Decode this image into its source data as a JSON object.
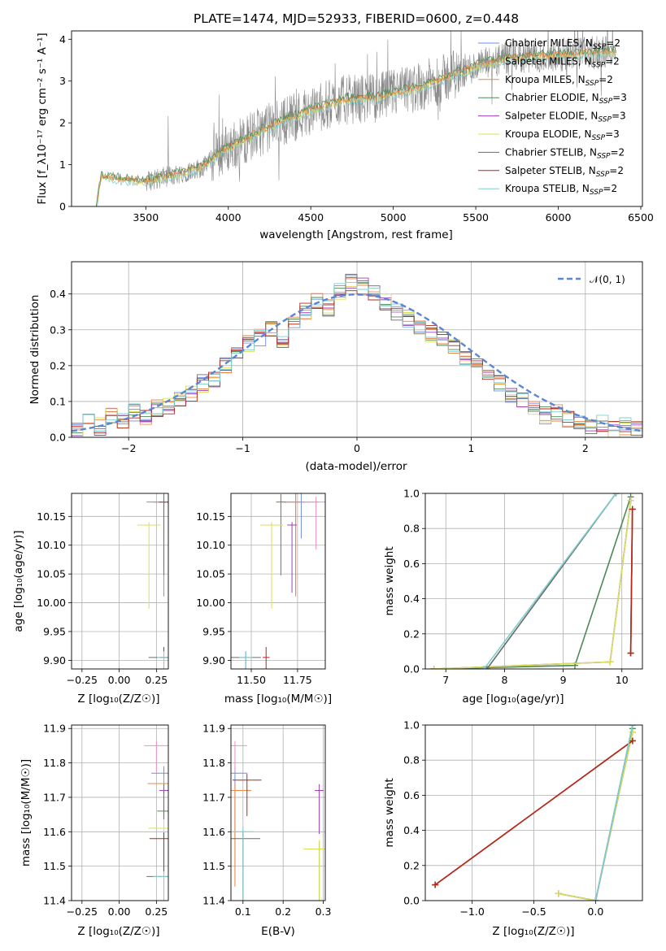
{
  "colors": {
    "Chabrier MILES": "#6f8ee8",
    "Salpeter MILES": "#f07c3c",
    "Kroupa MILES": "#e8894a",
    "Chabrier ELODIE": "#4e8a55",
    "Salpeter ELODIE": "#9f3dc0",
    "Kroupa ELODIE": "#d8e05a",
    "Chabrier STELIB": "#6b6b6b",
    "Salpeter STELIB": "#b3261e",
    "Kroupa STELIB": "#7fcdd0",
    "extra_pink": "#ef8fc7",
    "gaussian": "#5b85d6",
    "grid": "#b0b0b0"
  },
  "chart_data": [
    {
      "id": "spectrum",
      "type": "line",
      "title": "PLATE=1474, MJD=52933, FIBERID=0600, z=0.448",
      "xlabel": "wavelength [Angstrom, rest frame]",
      "ylabel": "Flux [f_λ10⁻¹⁷ erg cm⁻² s⁻¹ A⁻¹]",
      "xlim": [
        3050,
        6510
      ],
      "ylim": [
        0,
        4.2
      ],
      "xticks": [
        3500,
        4000,
        4500,
        5000,
        5500,
        6000,
        6500
      ],
      "yticks": [
        0,
        1,
        2,
        3,
        4
      ],
      "grid": false,
      "legend_position": "right",
      "legend": [
        {
          "model": "Chabrier MILES",
          "n": "2"
        },
        {
          "model": "Salpeter MILES",
          "n": "2"
        },
        {
          "model": "Kroupa MILES",
          "n": "2"
        },
        {
          "model": "Chabrier ELODIE",
          "n": "3"
        },
        {
          "model": "Salpeter ELODIE",
          "n": "3"
        },
        {
          "model": "Kroupa ELODIE",
          "n": "3"
        },
        {
          "model": "Chabrier STELIB",
          "n": "2"
        },
        {
          "model": "Salpeter STELIB",
          "n": "2"
        },
        {
          "model": "Kroupa STELIB",
          "n": "2"
        }
      ],
      "data_range": [
        3200,
        6350
      ],
      "model_trend": [
        [
          3200,
          0.0
        ],
        [
          3230,
          0.72
        ],
        [
          3350,
          0.65
        ],
        [
          3500,
          0.6
        ],
        [
          3700,
          0.78
        ],
        [
          3850,
          0.95
        ],
        [
          3950,
          1.3
        ],
        [
          4100,
          1.6
        ],
        [
          4300,
          2.0
        ],
        [
          4500,
          2.3
        ],
        [
          4700,
          2.55
        ],
        [
          4900,
          2.6
        ],
        [
          5100,
          2.8
        ],
        [
          5300,
          3.05
        ],
        [
          5500,
          3.35
        ],
        [
          5700,
          3.55
        ],
        [
          5900,
          3.6
        ],
        [
          6100,
          3.65
        ],
        [
          6350,
          3.7
        ]
      ]
    },
    {
      "id": "residuals",
      "type": "line",
      "xlabel": "(data-model)/error",
      "ylabel": "Normed distribution",
      "xlim": [
        -2.5,
        2.5
      ],
      "ylim": [
        0,
        0.49
      ],
      "xticks": [
        -2,
        -1,
        0,
        1,
        2
      ],
      "yticks": [
        0.0,
        0.1,
        0.2,
        0.3,
        0.4
      ],
      "grid": true,
      "legend_position": "top-right",
      "legend": [
        {
          "label": "𝒩(0, 1)"
        }
      ],
      "histogram_heights": [
        0.02,
        0.04,
        0.03,
        0.06,
        0.05,
        0.07,
        0.06,
        0.08,
        0.09,
        0.1,
        0.12,
        0.15,
        0.16,
        0.2,
        0.24,
        0.26,
        0.28,
        0.3,
        0.27,
        0.32,
        0.35,
        0.38,
        0.36,
        0.41,
        0.43,
        0.42,
        0.4,
        0.38,
        0.35,
        0.33,
        0.31,
        0.29,
        0.28,
        0.25,
        0.22,
        0.2,
        0.18,
        0.15,
        0.12,
        0.1,
        0.08,
        0.06,
        0.07,
        0.05,
        0.04,
        0.03,
        0.04,
        0.02,
        0.03,
        0.02
      ]
    },
    {
      "id": "age_vs_Z",
      "type": "scatter",
      "xlabel": "Z [log₁₀(Z/Z☉)]",
      "ylabel": "age  [log₁₀(age/yr)]",
      "xlim": [
        -0.32,
        0.33
      ],
      "ylim": [
        9.885,
        10.19
      ],
      "xticks": [
        -0.25,
        0.0,
        0.25
      ],
      "yticks": [
        9.9,
        9.95,
        10.0,
        10.05,
        10.1,
        10.15
      ],
      "grid": true,
      "points": [
        {
          "model": "Chabrier MILES",
          "x": 0.3,
          "y": 10.175
        },
        {
          "model": "Salpeter MILES",
          "x": 0.3,
          "y": 10.175
        },
        {
          "model": "Kroupa MILES",
          "x": 0.3,
          "y": 10.175
        },
        {
          "model": "Chabrier ELODIE",
          "x": 0.3,
          "y": 10.175
        },
        {
          "model": "Salpeter ELODIE",
          "x": 0.3,
          "y": 10.175
        },
        {
          "model": "Kroupa ELODIE",
          "x": 0.2,
          "y": 10.135
        },
        {
          "model": "Chabrier STELIB",
          "x": 0.3,
          "y": 9.905
        },
        {
          "model": "Salpeter STELIB",
          "x": 0.3,
          "y": 9.905
        },
        {
          "model": "Kroupa STELIB",
          "x": 0.3,
          "y": 9.905
        }
      ]
    },
    {
      "id": "age_vs_mass",
      "type": "scatter",
      "xlabel": "mass [log₁₀(M/M☉)]",
      "xlim": [
        11.39,
        11.9
      ],
      "ylim": [
        9.885,
        10.19
      ],
      "xticks": [
        11.5,
        11.75
      ],
      "yticks": [
        9.9,
        9.95,
        10.0,
        10.05,
        10.1,
        10.15
      ],
      "grid": true,
      "points": [
        {
          "model": "Chabrier MILES",
          "x": 11.77,
          "y": 10.175
        },
        {
          "model": "Salpeter MILES",
          "x": 11.74,
          "y": 10.175
        },
        {
          "model": "Kroupa MILES",
          "x": 11.74,
          "y": 10.175
        },
        {
          "model": "Chabrier ELODIE",
          "x": 11.66,
          "y": 10.175
        },
        {
          "model": "Salpeter ELODIE",
          "x": 11.72,
          "y": 10.135
        },
        {
          "model": "Kroupa ELODIE",
          "x": 11.61,
          "y": 10.135
        },
        {
          "model": "Chabrier STELIB",
          "x": 11.47,
          "y": 9.905
        },
        {
          "model": "Salpeter STELIB",
          "x": 11.58,
          "y": 9.905
        },
        {
          "model": "Kroupa STELIB",
          "x": 11.47,
          "y": 9.905
        },
        {
          "model": "extra_pink",
          "x": 11.85,
          "y": 10.175
        }
      ]
    },
    {
      "id": "weight_vs_age",
      "type": "line",
      "xlabel": "age  [log₁₀(age/yr)]",
      "ylabel": "mass weight",
      "xlim": [
        6.65,
        10.35
      ],
      "ylim": [
        0,
        1.0
      ],
      "xticks": [
        7,
        8,
        9,
        10
      ],
      "yticks": [
        0.0,
        0.2,
        0.4,
        0.6,
        0.8,
        1.0
      ],
      "grid": true,
      "series": [
        {
          "model": "Chabrier MILES",
          "x": [
            10.15,
            10.18
          ],
          "y": [
            0.09,
            0.91
          ]
        },
        {
          "model": "Salpeter MILES",
          "x": [
            10.15,
            10.18
          ],
          "y": [
            0.09,
            0.91
          ]
        },
        {
          "model": "Kroupa MILES",
          "x": [
            10.15,
            10.18
          ],
          "y": [
            0.09,
            0.91
          ]
        },
        {
          "model": "Chabrier ELODIE",
          "x": [
            6.8,
            9.2,
            10.15
          ],
          "y": [
            0.0,
            0.02,
            0.98
          ]
        },
        {
          "model": "Salpeter ELODIE",
          "x": [
            6.8,
            9.8,
            10.15
          ],
          "y": [
            0.0,
            0.04,
            0.96
          ]
        },
        {
          "model": "Kroupa ELODIE",
          "x": [
            6.8,
            9.8,
            10.15
          ],
          "y": [
            0.0,
            0.04,
            0.96
          ]
        },
        {
          "model": "Chabrier STELIB",
          "x": [
            7.7,
            9.9
          ],
          "y": [
            0.0,
            1.0
          ]
        },
        {
          "model": "Salpeter STELIB",
          "x": [
            10.15,
            10.18
          ],
          "y": [
            0.09,
            0.91
          ]
        },
        {
          "model": "Kroupa STELIB",
          "x": [
            7.65,
            9.9
          ],
          "y": [
            0.0,
            1.0
          ]
        }
      ]
    },
    {
      "id": "mass_vs_Z",
      "type": "scatter",
      "xlabel": "Z [log₁₀(Z/Z☉)]",
      "ylabel": "mass [log₁₀(M/M☉)]",
      "xlim": [
        -0.32,
        0.33
      ],
      "ylim": [
        11.4,
        11.91
      ],
      "xticks": [
        -0.25,
        0.0,
        0.25
      ],
      "yticks": [
        11.4,
        11.5,
        11.6,
        11.7,
        11.8,
        11.9
      ],
      "grid": true,
      "points": [
        {
          "model": "Chabrier MILES",
          "x": 0.3,
          "y": 11.77
        },
        {
          "model": "Salpeter MILES",
          "x": 0.3,
          "y": 11.74
        },
        {
          "model": "Kroupa MILES",
          "x": 0.3,
          "y": 11.74
        },
        {
          "model": "Chabrier ELODIE",
          "x": 0.3,
          "y": 11.66
        },
        {
          "model": "Salpeter ELODIE",
          "x": 0.3,
          "y": 11.72
        },
        {
          "model": "Kroupa ELODIE",
          "x": 0.3,
          "y": 11.61
        },
        {
          "model": "Chabrier STELIB",
          "x": 0.3,
          "y": 11.47
        },
        {
          "model": "Salpeter STELIB",
          "x": 0.3,
          "y": 11.58
        },
        {
          "model": "Kroupa STELIB",
          "x": 0.3,
          "y": 11.47
        },
        {
          "model": "extra_pink",
          "x": 0.25,
          "y": 11.85
        }
      ]
    },
    {
      "id": "mass_vs_EBV",
      "type": "scatter",
      "xlabel": "E(B-V)",
      "xlim": [
        0.07,
        0.305
      ],
      "ylim": [
        11.4,
        11.91
      ],
      "xticks": [
        0.1,
        0.2,
        0.3
      ],
      "yticks": [
        11.4,
        11.5,
        11.6,
        11.7,
        11.8,
        11.9
      ],
      "grid": true,
      "points": [
        {
          "model": "Chabrier MILES",
          "x": 0.08,
          "y": 11.77
        },
        {
          "model": "Salpeter MILES",
          "x": 0.08,
          "y": 11.72
        },
        {
          "model": "Kroupa MILES",
          "x": 0.08,
          "y": 11.72
        },
        {
          "model": "Chabrier ELODIE",
          "x": 0.29,
          "y": 11.55
        },
        {
          "model": "Salpeter ELODIE",
          "x": 0.29,
          "y": 11.72
        },
        {
          "model": "Kroupa ELODIE",
          "x": 0.29,
          "y": 11.55
        },
        {
          "model": "Chabrier STELIB",
          "x": 0.1,
          "y": 11.58
        },
        {
          "model": "Salpeter STELIB",
          "x": 0.11,
          "y": 11.75
        },
        {
          "model": "Kroupa STELIB",
          "x": 0.1,
          "y": 11.6
        },
        {
          "model": "extra_pink",
          "x": 0.08,
          "y": 11.85
        }
      ]
    },
    {
      "id": "weight_vs_Z",
      "type": "line",
      "xlabel": "Z [log₁₀(Z/Z☉)]",
      "ylabel": "mass weight",
      "xlim": [
        -1.38,
        0.38
      ],
      "ylim": [
        0,
        1.0
      ],
      "xticks": [
        -1.0,
        -0.5,
        0.0
      ],
      "yticks": [
        0.0,
        0.2,
        0.4,
        0.6,
        0.8,
        1.0
      ],
      "grid": true,
      "series": [
        {
          "model": "Chabrier MILES",
          "x": [
            -1.3,
            0.3
          ],
          "y": [
            0.09,
            0.91
          ]
        },
        {
          "model": "Salpeter MILES",
          "x": [
            -1.3,
            0.3
          ],
          "y": [
            0.09,
            0.91
          ]
        },
        {
          "model": "Kroupa MILES",
          "x": [
            -1.3,
            0.3
          ],
          "y": [
            0.09,
            0.91
          ]
        },
        {
          "model": "Chabrier ELODIE",
          "x": [
            -0.3,
            0.0,
            0.3
          ],
          "y": [
            0.04,
            0.0,
            0.98
          ]
        },
        {
          "model": "Salpeter ELODIE",
          "x": [
            -0.3,
            0.0,
            0.3
          ],
          "y": [
            0.04,
            0.0,
            0.96
          ]
        },
        {
          "model": "Kroupa ELODIE",
          "x": [
            -0.3,
            0.0,
            0.3
          ],
          "y": [
            0.04,
            0.0,
            0.96
          ]
        },
        {
          "model": "Chabrier STELIB",
          "x": [
            0.0,
            0.3
          ],
          "y": [
            0.0,
            1.0
          ]
        },
        {
          "model": "Salpeter STELIB",
          "x": [
            -1.3,
            0.3
          ],
          "y": [
            0.09,
            0.91
          ]
        },
        {
          "model": "Kroupa STELIB",
          "x": [
            0.0,
            0.3
          ],
          "y": [
            0.0,
            1.0
          ]
        }
      ]
    }
  ]
}
